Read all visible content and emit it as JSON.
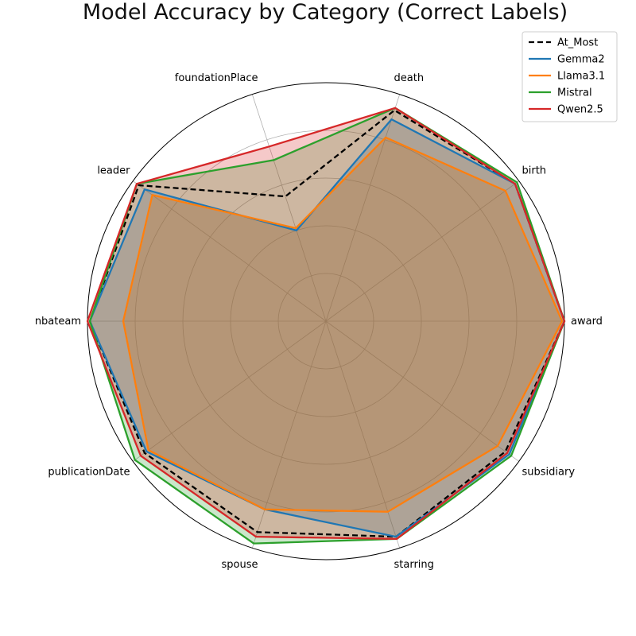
{
  "chart_data": {
    "type": "radar",
    "title": "Model Accuracy by Category (Correct Labels)",
    "categories": [
      "award",
      "birth",
      "death",
      "foundationPlace",
      "leader",
      "nbateam",
      "publicationDate",
      "spouse",
      "starring",
      "subsidiary"
    ],
    "rlim": [
      0,
      1
    ],
    "grid": true,
    "legend_position": "top-right",
    "series": [
      {
        "name": "At_Most",
        "color": "#000000",
        "dashed": true,
        "fill": false,
        "values": [
          1.0,
          0.98,
          0.93,
          0.55,
          0.97,
          0.99,
          0.94,
          0.93,
          0.95,
          0.93
        ]
      },
      {
        "name": "Gemma2",
        "color": "#1f77b4",
        "dashed": false,
        "fill": true,
        "values": [
          1.0,
          0.98,
          0.89,
          0.4,
          0.94,
          0.99,
          0.93,
          0.83,
          0.95,
          0.95
        ]
      },
      {
        "name": "Llama3.1",
        "color": "#ff7f0e",
        "dashed": false,
        "fill": true,
        "values": [
          0.99,
          0.93,
          0.81,
          0.41,
          0.9,
          0.85,
          0.92,
          0.83,
          0.84,
          0.89
        ]
      },
      {
        "name": "Mistral",
        "color": "#2ca02c",
        "dashed": false,
        "fill": true,
        "values": [
          1.0,
          0.99,
          0.94,
          0.71,
          0.98,
          0.99,
          0.99,
          0.98,
          0.96,
          0.96
        ]
      },
      {
        "name": "Qwen2.5",
        "color": "#d62728",
        "dashed": false,
        "fill": true,
        "values": [
          1.0,
          0.98,
          0.94,
          0.77,
          0.98,
          1.0,
          0.96,
          0.95,
          0.96,
          0.94
        ]
      }
    ]
  }
}
